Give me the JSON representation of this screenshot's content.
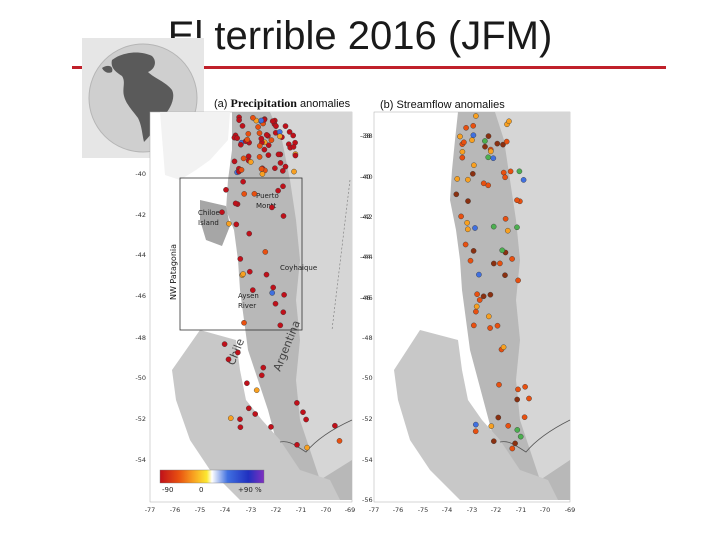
{
  "slide": {
    "title": "El terrible 2016 (JFM)",
    "accent_color": "#c0202a"
  },
  "panel_a": {
    "label_prefix": "(a)",
    "label_main": "Precipitation",
    "label_suffix": "anomalies",
    "lat_ticks": [
      "-40",
      "-42",
      "-44",
      "-46",
      "-48",
      "-50",
      "-52",
      "-54"
    ],
    "lat_ticks_right": [
      "-38",
      "-40",
      "-42",
      "-44",
      "-46"
    ],
    "lon_ticks": [
      "-77",
      "-76",
      "-75",
      "-74",
      "-73",
      "-72",
      "-71",
      "-70",
      "-69"
    ],
    "places": {
      "puerto_montt": [
        "Puerto",
        "Montt"
      ],
      "chiloe": [
        "Chiloe",
        "Island"
      ],
      "coyhaique": "Coyhaique",
      "aysen": [
        "Aysen",
        "River"
      ],
      "nw_patagonia": "NW Patagonia",
      "chile": "Chile",
      "argentina": "Argentina"
    },
    "colorbar": {
      "labels": [
        "-90",
        "0",
        "+90 %"
      ],
      "colors": [
        "#c0101a",
        "#e85010",
        "#f8a020",
        "#fce830",
        "#ffffff",
        "#4070e0",
        "#2030c0",
        "#8030c0"
      ]
    }
  },
  "panel_b": {
    "label_prefix": "(b)",
    "label_main": "Streamflow anomalies",
    "lat_ticks": [
      "-38",
      "-40",
      "-42",
      "-44",
      "-46",
      "-48",
      "-50",
      "-52",
      "-54",
      "-56"
    ],
    "lon_ticks": [
      "-77",
      "-76",
      "-75",
      "-74",
      "-73",
      "-72",
      "-71",
      "-70",
      "-69"
    ]
  }
}
